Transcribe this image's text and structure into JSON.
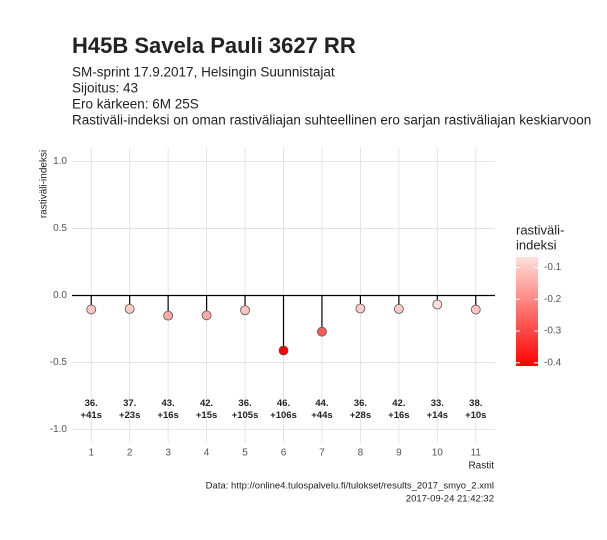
{
  "chart_data": {
    "type": "lollipop",
    "title": "H45B Savela Pauli 3627 RR",
    "subtitle": [
      "SM-sprint 17.9.2017, Helsingin Suunnistajat",
      "Sijoitus: 43",
      "Ero kärkeen: 6M 25S",
      "Rastiväli-indeksi on oman rastiväliajan suhteellinen ero sarjan rastiväliajan keskiarvoon"
    ],
    "y_label": "rastiväli-indeksi",
    "x_label": "Rastit",
    "x": [
      1,
      2,
      3,
      4,
      5,
      6,
      7,
      8,
      9,
      10,
      11
    ],
    "values": [
      -0.104,
      -0.1,
      -0.15,
      -0.148,
      -0.11,
      -0.41,
      -0.27,
      -0.097,
      -0.1,
      -0.067,
      -0.105
    ],
    "point_labels": [
      [
        "36.",
        "+41s"
      ],
      [
        "37.",
        "+23s"
      ],
      [
        "43.",
        "+16s"
      ],
      [
        "42.",
        "+15s"
      ],
      [
        "36.",
        "+105s"
      ],
      [
        "46.",
        "+106s"
      ],
      [
        "44.",
        "+44s"
      ],
      [
        "36.",
        "+28s"
      ],
      [
        "42.",
        "+16s"
      ],
      [
        "33.",
        "+14s"
      ],
      [
        "38.",
        "+10s"
      ]
    ],
    "label_y": -0.85,
    "reference_line": 0,
    "xlim": [
      0.5,
      11.5
    ],
    "ylim": [
      -1.1,
      1.1
    ],
    "xticks": [
      1,
      2,
      3,
      4,
      5,
      6,
      7,
      8,
      9,
      10,
      11
    ],
    "yticks": [
      {
        "value": 1,
        "label": "1.0"
      },
      0.5,
      {
        "value": 0,
        "label": "0.0"
      },
      -0.5,
      {
        "value": -1,
        "label": "-1.0"
      }
    ],
    "grid": true,
    "color_low": "#ff0000",
    "color_high": "#fde0d9",
    "legend_title": [
      "rastiväli-",
      "indeksi"
    ],
    "colorbar_ticks": [
      -0.1,
      -0.2,
      -0.3,
      -0.4
    ],
    "caption": [
      "Data: http://online4.tulospalvelu.fi/tulokset/results_2017_smyo_2.xml",
      "2017-09-24 21:42:32"
    ]
  }
}
